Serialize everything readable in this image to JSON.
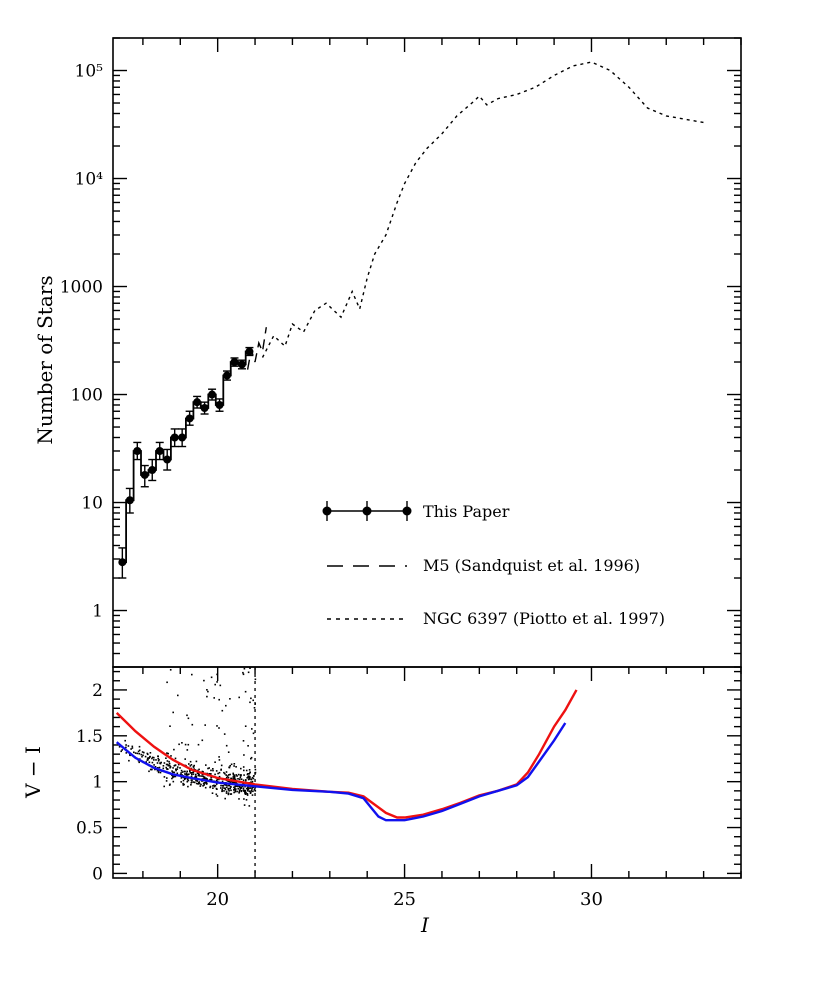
{
  "chart_data": [
    {
      "type": "line",
      "panel": "top",
      "ylabel": "Number of Stars",
      "yscale": "log",
      "xlim": [
        17.2,
        34.0
      ],
      "ylim": [
        0.3,
        200000
      ],
      "y_tick_labels": [
        {
          "value": 1,
          "label": "1"
        },
        {
          "value": 10,
          "label": "10"
        },
        {
          "value": 100,
          "label": "100"
        },
        {
          "value": 1000,
          "label": "1000"
        },
        {
          "value": 10000,
          "label": "10⁴"
        },
        {
          "value": 100000,
          "label": "10⁵"
        }
      ],
      "series": [
        {
          "name": "This Paper",
          "style": "histogram-with-errorbars",
          "points": [
            {
              "x": 17.45,
              "y": 2.8,
              "lo": 2.0,
              "hi": 3.8
            },
            {
              "x": 17.65,
              "y": 10.5,
              "lo": 8.0,
              "hi": 13.5
            },
            {
              "x": 17.85,
              "y": 30,
              "lo": 25,
              "hi": 36
            },
            {
              "x": 18.05,
              "y": 18,
              "lo": 14,
              "hi": 22
            },
            {
              "x": 18.25,
              "y": 20,
              "lo": 16,
              "hi": 25
            },
            {
              "x": 18.45,
              "y": 30,
              "lo": 25,
              "hi": 36
            },
            {
              "x": 18.65,
              "y": 25,
              "lo": 20,
              "hi": 31
            },
            {
              "x": 18.85,
              "y": 40,
              "lo": 33,
              "hi": 48
            },
            {
              "x": 19.05,
              "y": 40,
              "lo": 33,
              "hi": 48
            },
            {
              "x": 19.25,
              "y": 60,
              "lo": 52,
              "hi": 70
            },
            {
              "x": 19.45,
              "y": 85,
              "lo": 75,
              "hi": 96
            },
            {
              "x": 19.65,
              "y": 75,
              "lo": 66,
              "hi": 85
            },
            {
              "x": 19.85,
              "y": 100,
              "lo": 89,
              "hi": 112
            },
            {
              "x": 20.05,
              "y": 80,
              "lo": 70,
              "hi": 91
            },
            {
              "x": 20.25,
              "y": 150,
              "lo": 136,
              "hi": 165
            },
            {
              "x": 20.45,
              "y": 200,
              "lo": 183,
              "hi": 218
            },
            {
              "x": 20.65,
              "y": 190,
              "lo": 173,
              "hi": 208
            },
            {
              "x": 20.85,
              "y": 250,
              "lo": 230,
              "hi": 272
            }
          ]
        },
        {
          "name": "M5 (Sandquist et al. 1996)",
          "style": "long-dash",
          "x": [
            20.8,
            20.9,
            21.0,
            21.1,
            21.2,
            21.3
          ],
          "y": [
            170,
            260,
            200,
            300,
            250,
            420
          ]
        },
        {
          "name": "NGC 6397 (Piotto et al. 1997)",
          "style": "dotted",
          "x": [
            21.2,
            21.5,
            21.8,
            22.0,
            22.3,
            22.6,
            22.9,
            23.3,
            23.6,
            23.8,
            24.0,
            24.2,
            24.5,
            24.8,
            25.0,
            25.3,
            25.6,
            26.0,
            26.4,
            26.8,
            27.0,
            27.2,
            27.5,
            28.0,
            28.5,
            29.0,
            29.5,
            30.0,
            30.5,
            31.0,
            31.5,
            32.0,
            33.0
          ],
          "y": [
            220,
            350,
            280,
            450,
            380,
            600,
            700,
            520,
            900,
            620,
            1200,
            2000,
            3000,
            6000,
            9000,
            14000,
            19000,
            26000,
            38000,
            50000,
            58000,
            48000,
            55000,
            60000,
            70000,
            90000,
            110000,
            120000,
            100000,
            70000,
            45000,
            38000,
            33000
          ]
        }
      ],
      "legend_placement": "lower-right"
    },
    {
      "type": "scatter",
      "panel": "bottom",
      "xlabel": "I",
      "ylabel": "V − I",
      "xlim": [
        17.2,
        34.0
      ],
      "ylim": [
        -0.05,
        2.25
      ],
      "x_tick_labels": [
        {
          "value": 20,
          "label": "20"
        },
        {
          "value": 25,
          "label": "25"
        },
        {
          "value": 30,
          "label": "30"
        }
      ],
      "y_tick_labels": [
        {
          "value": 0,
          "label": "0"
        },
        {
          "value": 0.5,
          "label": "0.5"
        },
        {
          "value": 1,
          "label": "1"
        },
        {
          "value": 1.5,
          "label": "1.5"
        },
        {
          "value": 2,
          "label": "2"
        }
      ],
      "cutoff_line_x": 21.0,
      "scatter": {
        "seed": 7,
        "count": 620,
        "x_range": [
          17.3,
          21.0
        ],
        "trend": [
          [
            17.3,
            1.45
          ],
          [
            18.5,
            1.15
          ],
          [
            20.0,
            1.02
          ],
          [
            21.0,
            0.97
          ]
        ],
        "red_sequence_frac": 0.12,
        "red_sequence_y": [
          1.2,
          2.25
        ]
      },
      "series": [
        {
          "name": "red-isochrone",
          "color": "#ee1111",
          "x": [
            17.3,
            17.8,
            18.3,
            18.8,
            19.3,
            20.0,
            21.0,
            22.0,
            23.0,
            23.5,
            23.9,
            24.2,
            24.5,
            24.8,
            25.0,
            25.5,
            26.0,
            26.5,
            27.0,
            27.5,
            28.0,
            28.3,
            28.6,
            29.0,
            29.3,
            29.6
          ],
          "y": [
            1.75,
            1.55,
            1.38,
            1.24,
            1.13,
            1.04,
            0.97,
            0.92,
            0.89,
            0.88,
            0.84,
            0.75,
            0.66,
            0.61,
            0.61,
            0.64,
            0.7,
            0.77,
            0.85,
            0.9,
            0.97,
            1.1,
            1.3,
            1.6,
            1.78,
            2.0
          ]
        },
        {
          "name": "blue-isochrone",
          "color": "#1111ee",
          "x": [
            17.3,
            17.8,
            18.3,
            18.8,
            19.3,
            20.0,
            21.0,
            22.0,
            23.0,
            23.5,
            23.9,
            24.1,
            24.3,
            24.5,
            24.8,
            25.0,
            25.5,
            26.0,
            26.5,
            27.0,
            27.5,
            28.0,
            28.3,
            28.6,
            29.0,
            29.3
          ],
          "y": [
            1.43,
            1.26,
            1.15,
            1.08,
            1.04,
            0.99,
            0.95,
            0.91,
            0.89,
            0.87,
            0.82,
            0.72,
            0.62,
            0.58,
            0.58,
            0.58,
            0.62,
            0.68,
            0.76,
            0.84,
            0.9,
            0.96,
            1.05,
            1.22,
            1.45,
            1.64
          ]
        }
      ]
    }
  ],
  "legend": {
    "this_paper": "This Paper",
    "m5": "M5 (Sandquist et al. 1996)",
    "ngc": "NGC 6397 (Piotto et al. 1997)"
  },
  "labels": {
    "top_ylabel": "Number of Stars",
    "bottom_ylabel": "V − I",
    "xlabel": "I"
  }
}
